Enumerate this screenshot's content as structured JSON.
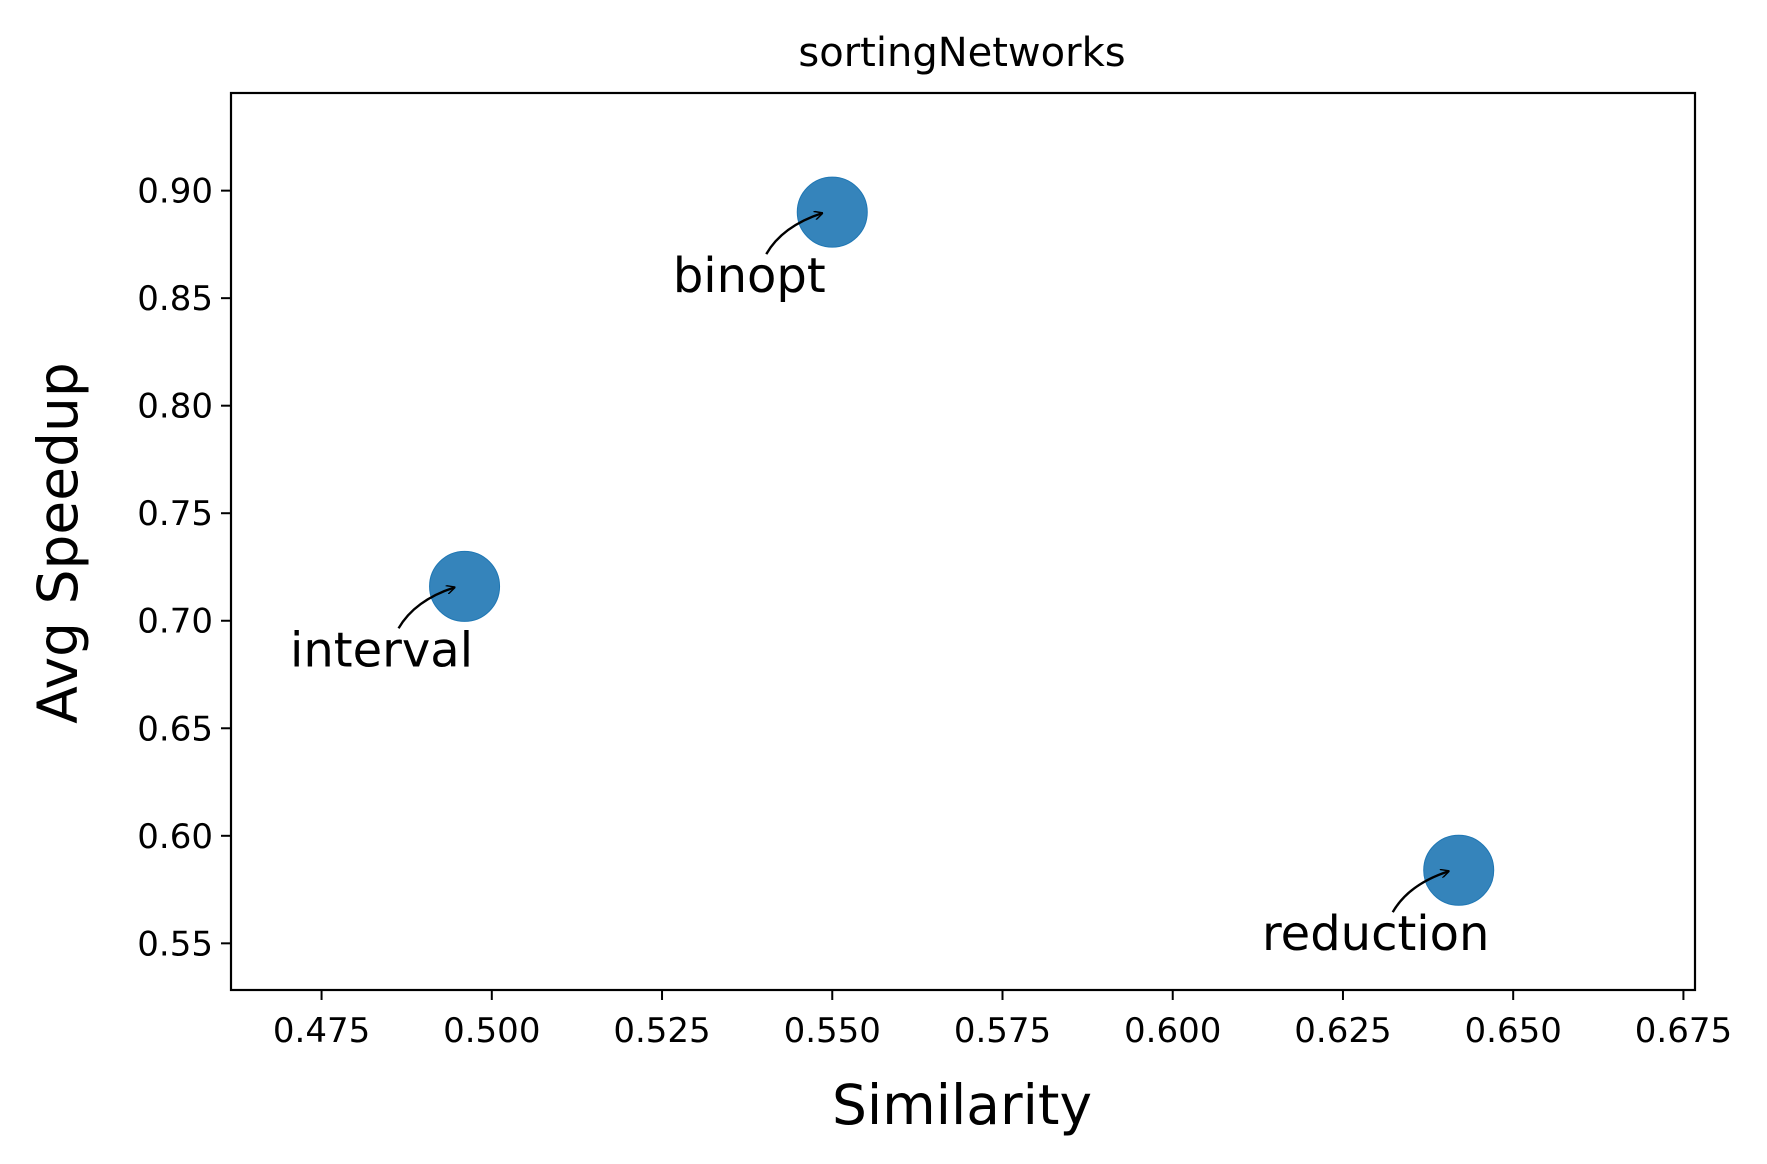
{
  "chart_data": {
    "type": "scatter",
    "title": "sortingNetworks",
    "xlabel": "Similarity",
    "ylabel": "Avg Speedup",
    "xlim": [
      0.4617,
      0.6767
    ],
    "ylim": [
      0.5283,
      0.9454
    ],
    "xticks": [
      0.475,
      0.5,
      0.525,
      0.55,
      0.575,
      0.6,
      0.625,
      0.65,
      0.675
    ],
    "xtick_labels": [
      "0.475",
      "0.500",
      "0.525",
      "0.550",
      "0.575",
      "0.600",
      "0.625",
      "0.650",
      "0.675"
    ],
    "yticks": [
      0.55,
      0.6,
      0.65,
      0.7,
      0.75,
      0.8,
      0.85,
      0.9
    ],
    "ytick_labels": [
      "0.55",
      "0.60",
      "0.65",
      "0.70",
      "0.75",
      "0.80",
      "0.85",
      "0.90"
    ],
    "grid": false,
    "marker_color": "#1f77b4",
    "points": [
      {
        "label": "binopt",
        "x": 0.55,
        "y": 0.89
      },
      {
        "label": "interval",
        "x": 0.496,
        "y": 0.716
      },
      {
        "label": "reduction",
        "x": 0.642,
        "y": 0.584
      }
    ]
  }
}
